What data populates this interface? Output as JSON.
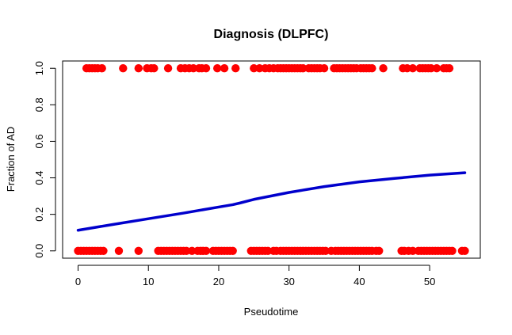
{
  "chart_data": {
    "type": "scatter",
    "title": "Diagnosis (DLPFC)",
    "xlabel": "Pseudotime",
    "ylabel": "Fraction of AD",
    "xlim": [
      -2.2,
      57.2
    ],
    "ylim": [
      -0.04,
      1.04
    ],
    "xticks": [
      0,
      10,
      20,
      30,
      40,
      50
    ],
    "yticks": [
      0.0,
      0.2,
      0.4,
      0.6,
      0.8,
      1.0
    ],
    "xtick_labels": [
      "0",
      "10",
      "20",
      "30",
      "40",
      "50"
    ],
    "ytick_labels": [
      "0.0",
      "0.2",
      "0.4",
      "0.6",
      "0.8",
      "1.0"
    ],
    "grid": false,
    "series": [
      {
        "kind": "points",
        "color": "#ff0000",
        "x_ad": [
          1.2,
          1.6,
          2.0,
          2.4,
          2.8,
          3.4,
          6.4,
          8.6,
          9.8,
          10.4,
          10.8,
          12.8,
          14.6,
          15.2,
          15.8,
          16.4,
          17.2,
          17.6,
          18.2,
          19.8,
          20.8,
          22.4,
          25.0,
          25.8,
          26.6,
          27.2,
          27.8,
          28.4,
          28.8,
          29.2,
          29.6,
          30.0,
          30.4,
          30.8,
          31.2,
          31.6,
          32.0,
          32.8,
          33.2,
          33.6,
          34.0,
          34.4,
          35.0,
          36.4,
          36.8,
          37.2,
          37.6,
          38.0,
          38.4,
          38.8,
          39.2,
          39.6,
          40.2,
          40.6,
          41.0,
          41.4,
          41.8,
          43.4,
          46.2,
          46.8,
          47.6,
          48.6,
          49.0,
          49.4,
          49.8,
          50.2,
          51.0,
          52.0,
          52.4,
          52.8
        ],
        "y_ad": 1,
        "x_control": [
          0.0,
          0.4,
          0.8,
          1.2,
          1.6,
          2.0,
          2.4,
          2.8,
          3.2,
          3.6,
          5.8,
          8.6,
          11.4,
          11.8,
          12.2,
          12.6,
          13.0,
          13.4,
          13.8,
          14.2,
          14.6,
          15.0,
          15.4,
          16.2,
          17.0,
          17.4,
          17.8,
          18.2,
          19.2,
          19.6,
          20.0,
          20.4,
          20.8,
          21.2,
          21.6,
          22.0,
          24.6,
          25.0,
          25.4,
          25.8,
          26.2,
          26.6,
          27.0,
          27.8,
          28.2,
          28.8,
          29.2,
          29.6,
          30.0,
          30.4,
          30.8,
          31.2,
          31.6,
          32.0,
          32.4,
          32.8,
          33.2,
          33.6,
          34.0,
          34.4,
          34.8,
          35.2,
          36.0,
          36.6,
          37.0,
          37.4,
          37.8,
          38.2,
          38.6,
          39.0,
          39.4,
          39.8,
          40.2,
          40.6,
          41.0,
          41.4,
          41.8,
          42.4,
          42.8,
          46.0,
          46.4,
          47.0,
          47.6,
          48.4,
          48.8,
          49.2,
          49.6,
          50.0,
          50.4,
          50.8,
          51.2,
          51.6,
          52.0,
          52.4,
          52.8,
          53.2,
          54.6,
          55.0
        ],
        "y_control": 0
      },
      {
        "kind": "line",
        "color": "#0000cc",
        "x": [
          0,
          5,
          10,
          15,
          20,
          22,
          23,
          25,
          30,
          35,
          40,
          45,
          50,
          55
        ],
        "y": [
          0.113,
          0.145,
          0.176,
          0.207,
          0.24,
          0.253,
          0.262,
          0.282,
          0.32,
          0.352,
          0.378,
          0.397,
          0.415,
          0.428
        ]
      }
    ]
  }
}
